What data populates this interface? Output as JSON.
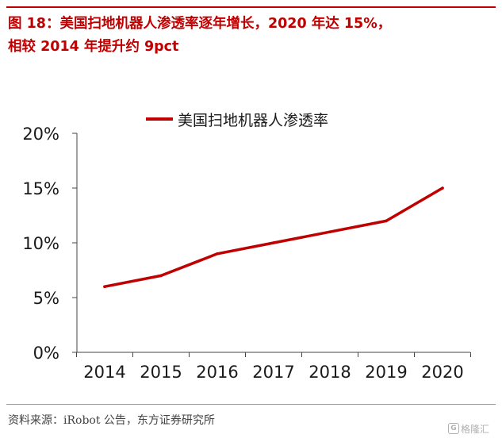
{
  "figure": {
    "title_line1": "图 18：美国扫地机器人渗透率逐年增长，2020 年达 15%，",
    "title_line2": "相较 2014 年提升约 9pct",
    "source": "资料来源：iRobot 公告，东方证券研究所",
    "watermark_logo": "G",
    "watermark_text": "格隆汇"
  },
  "colors": {
    "accent": "#c00000",
    "axis": "#444444",
    "text": "#1a1a1a"
  },
  "chart_data": {
    "type": "line",
    "title": "图 18：美国扫地机器人渗透率逐年增长，2020 年达 15%，相较 2014 年提升约 9pct",
    "x": [
      "2014",
      "2015",
      "2016",
      "2017",
      "2018",
      "2019",
      "2020"
    ],
    "series": [
      {
        "name": "美国扫地机器人渗透率",
        "values": [
          6,
          7,
          9,
          10,
          11,
          12,
          15
        ]
      }
    ],
    "y_unit": "%",
    "ylim": [
      0,
      20
    ],
    "yticks": [
      "0%",
      "5%",
      "10%",
      "15%",
      "20%"
    ],
    "xlabel": "",
    "ylabel": "",
    "grid": false,
    "legend": "top-center"
  }
}
